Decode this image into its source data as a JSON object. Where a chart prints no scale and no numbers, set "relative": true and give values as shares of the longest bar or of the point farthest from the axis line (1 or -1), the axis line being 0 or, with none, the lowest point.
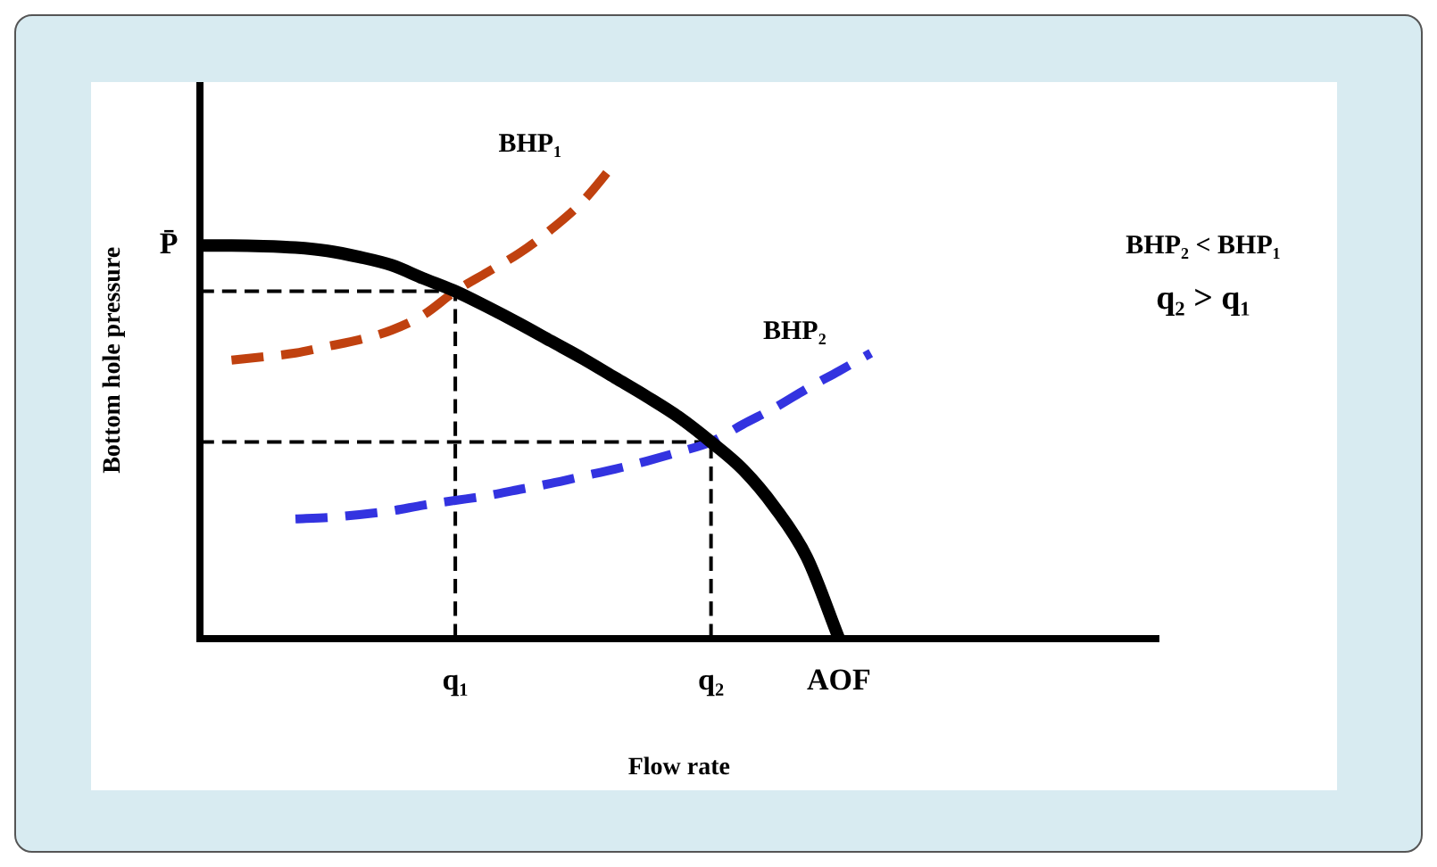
{
  "chart_data": {
    "type": "line",
    "relative": true,
    "xlabel": "Flow rate",
    "ylabel": "Bottom hole pressure",
    "categories": [
      null,
      null,
      null,
      null,
      null,
      null,
      null,
      null,
      "q₁",
      null,
      null,
      null,
      null,
      null,
      null,
      null,
      "q₂",
      null,
      null,
      null,
      "AOF",
      null,
      null,
      null,
      null,
      null,
      null,
      null,
      null,
      null,
      null
    ],
    "legend": false,
    "grid": false,
    "marker": "none",
    "annotations": [
      "P̄",
      "BHP₂ < BHP₁",
      "q₂ > q₁"
    ],
    "ref_lines": [
      {
        "axis": "x",
        "value": "q₁",
        "color": "#000000",
        "line_style": "dashed"
      },
      {
        "axis": "x",
        "value": "q₂",
        "color": "#000000",
        "line_style": "dashed"
      },
      {
        "axis": "y",
        "value": 0.73,
        "color": "#000000",
        "line_style": "dashed"
      },
      {
        "axis": "y",
        "value": 0.413,
        "color": "#000000",
        "line_style": "dashed"
      }
    ],
    "series": [
      {
        "color": "#000000",
        "line_style": "solid",
        "values": [
          0.826,
          0.826,
          0.825,
          0.822,
          0.815,
          0.802,
          0.785,
          0.757,
          0.73,
          0.697,
          0.662,
          0.625,
          0.588,
          0.548,
          0.508,
          0.465,
          0.413,
          0.355,
          0.275,
          0.17,
          0,
          null,
          null,
          null,
          null,
          null,
          null,
          null,
          null,
          null,
          null
        ]
      },
      {
        "name": "BHP₁",
        "color": "#c0410f",
        "line_style": "dashed",
        "values": [
          null,
          0.585,
          0.592,
          0.6,
          0.614,
          0.628,
          0.648,
          0.68,
          0.73,
          0.77,
          0.81,
          0.86,
          0.92,
          1,
          null,
          null,
          null,
          null,
          null,
          null,
          null,
          null,
          null,
          null,
          null,
          null,
          null,
          null,
          null,
          null,
          null
        ]
      },
      {
        "name": "BHP₂",
        "color": "#3333e0",
        "line_style": "dashed",
        "values": [
          null,
          null,
          null,
          0.251,
          0.254,
          0.26,
          0.268,
          0.28,
          0.29,
          0.3,
          0.313,
          0.326,
          0.341,
          0.356,
          0.373,
          0.392,
          0.413,
          0.45,
          0.485,
          0.525,
          0.562,
          0.6,
          null,
          null,
          null,
          null,
          null,
          null,
          null,
          null,
          null
        ]
      }
    ]
  }
}
